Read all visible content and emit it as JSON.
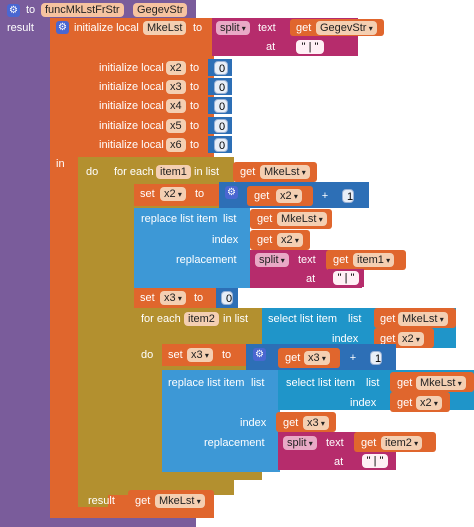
{
  "procedure": {
    "to": "to",
    "name": "funcMkLstFrStr",
    "param": "GegevStr",
    "result_label": "result"
  },
  "init": {
    "label": "initialize local",
    "to": "to",
    "first_var": "MkeLst",
    "vars": [
      {
        "name": "x2",
        "value": "0"
      },
      {
        "name": "x3",
        "value": "0"
      },
      {
        "name": "x4",
        "value": "0"
      },
      {
        "name": "x5",
        "value": "0"
      },
      {
        "name": "x6",
        "value": "0"
      }
    ]
  },
  "split1": {
    "split": "split",
    "text_label": "text",
    "get": "get",
    "arg": "GegevStr",
    "at": "at",
    "sep": "\" | \""
  },
  "in_label": "in",
  "do_label": "do",
  "foreach1": {
    "label": "for each",
    "var": "item1",
    "in_list": "in list",
    "get": "get",
    "list": "MkeLst"
  },
  "set_x2": {
    "set": "set",
    "var": "x2",
    "to": "to",
    "get": "get",
    "plus": "+",
    "one": "1"
  },
  "replace1": {
    "label": "replace list item",
    "list_label": "list",
    "list_get": "get",
    "list_var": "MkeLst",
    "index_label": "index",
    "index_get": "get",
    "index_var": "x2",
    "replacement_label": "replacement",
    "split": "split",
    "text_label": "text",
    "text_get": "get",
    "text_var": "item1",
    "at": "at",
    "sep": "\" | \""
  },
  "set_x3_0": {
    "set": "set",
    "var": "x3",
    "to": "to",
    "value": "0"
  },
  "foreach2": {
    "label": "for each",
    "var": "item2",
    "in_list": "in list",
    "select": "select list item",
    "list_label": "list",
    "list_get": "get",
    "list_var": "MkeLst",
    "index_label": "index",
    "index_get": "get",
    "index_var": "x2"
  },
  "set_x3": {
    "set": "set",
    "var": "x3",
    "to": "to",
    "get": "get",
    "plus": "+",
    "one": "1"
  },
  "replace2": {
    "label": "replace list item",
    "list_label": "list",
    "select": "select list item",
    "sel_list_label": "list",
    "sel_list_get": "get",
    "sel_list_var": "MkeLst",
    "sel_index_label": "index",
    "sel_index_get": "get",
    "sel_index_var": "x2",
    "index_label": "index",
    "index_get": "get",
    "index_var": "x3",
    "replacement_label": "replacement",
    "split": "split",
    "text_label": "text",
    "text_get": "get",
    "text_var": "item2",
    "at": "at",
    "sep": "\" | \""
  },
  "result_block": {
    "label": "result",
    "get": "get",
    "var": "MkeLst"
  }
}
